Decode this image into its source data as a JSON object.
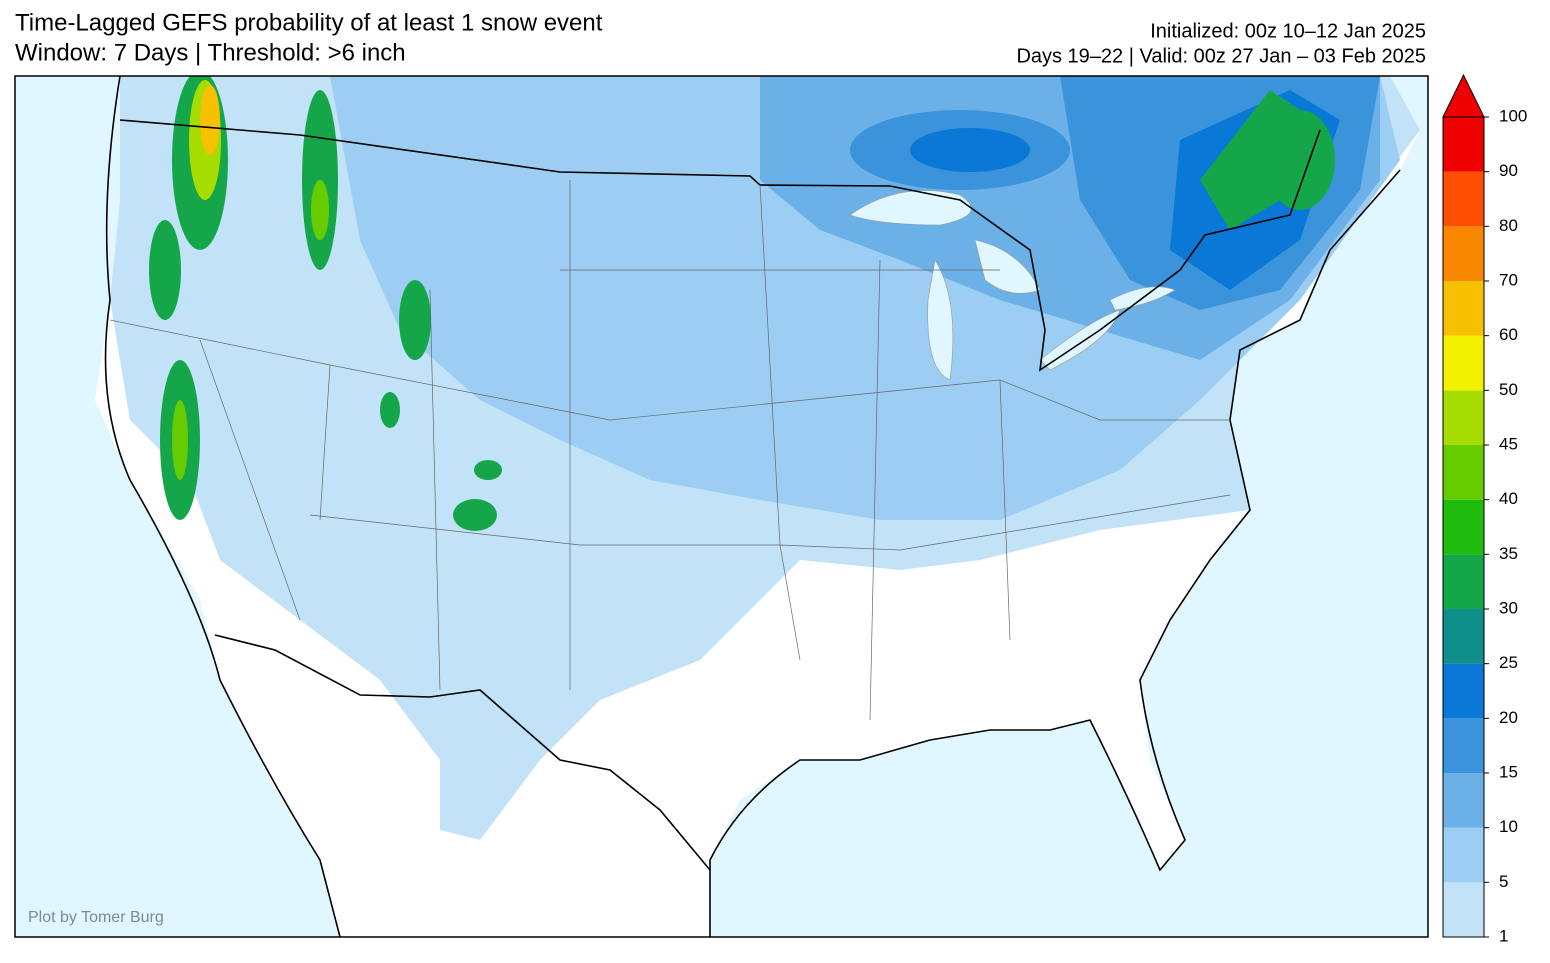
{
  "header": {
    "title": "Time-Lagged GEFS probability of at least 1 snow event",
    "subtitle": "Window: 7 Days | Threshold: >6 inch",
    "init": "Initialized: 00z 10–12 Jan 2025",
    "valid": "Days 19–22 | Valid: 00z 27 Jan – 03 Feb 2025"
  },
  "colorbar": {
    "ticks": [
      1,
      5,
      10,
      15,
      20,
      25,
      30,
      35,
      40,
      45,
      50,
      60,
      70,
      80,
      90,
      100
    ],
    "colors": [
      "#c2e2f8",
      "#9ccdf2",
      "#6bb0e6",
      "#3b93dc",
      "#0a78d6",
      "#0e8f8a",
      "#16a64a",
      "#1fbb0e",
      "#66cc00",
      "#a6dc00",
      "#f2f200",
      "#f7c000",
      "#f98800",
      "#fc5000",
      "#ee0000"
    ],
    "extend_color": "#ee0000"
  },
  "credit": "Plot by Tomer Burg"
}
